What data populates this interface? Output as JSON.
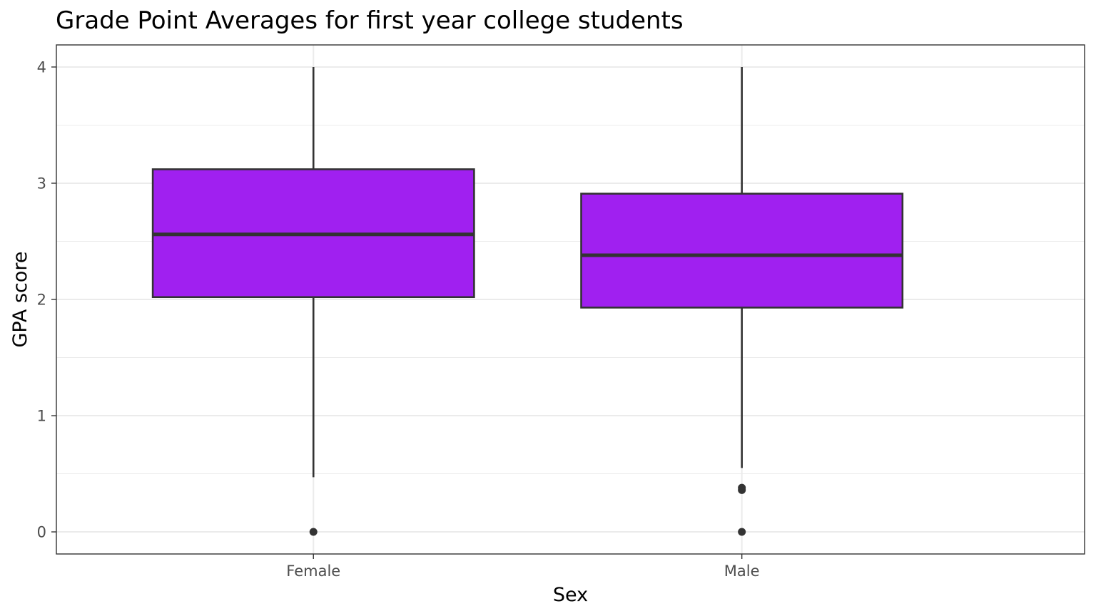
{
  "chart_data": {
    "type": "box",
    "title": "Grade Point Averages for first year college students",
    "xlabel": "Sex",
    "ylabel": "GPA score",
    "categories": [
      "Female",
      "Male"
    ],
    "ylim": [
      -0.19,
      4.19
    ],
    "yticks": [
      0,
      1,
      2,
      3,
      4
    ],
    "yticks_labels": [
      "0",
      "1",
      "2",
      "3",
      "4"
    ],
    "grid": true,
    "legend": "none",
    "colors": {
      "box_fill": "#a020f0",
      "box_stroke": "#333333",
      "grid": "#ebebeb",
      "panel_border": "#333333",
      "tick_text": "#4d4d4d"
    },
    "boxes": [
      {
        "category": "Female",
        "whisker_low": 0.47,
        "q1": 2.02,
        "median": 2.56,
        "q3": 3.12,
        "whisker_high": 4.0,
        "outliers": [
          0.0
        ]
      },
      {
        "category": "Male",
        "whisker_low": 0.55,
        "q1": 1.93,
        "median": 2.38,
        "q3": 2.91,
        "whisker_high": 4.0,
        "outliers": [
          0.0,
          0.36,
          0.38
        ]
      }
    ]
  }
}
